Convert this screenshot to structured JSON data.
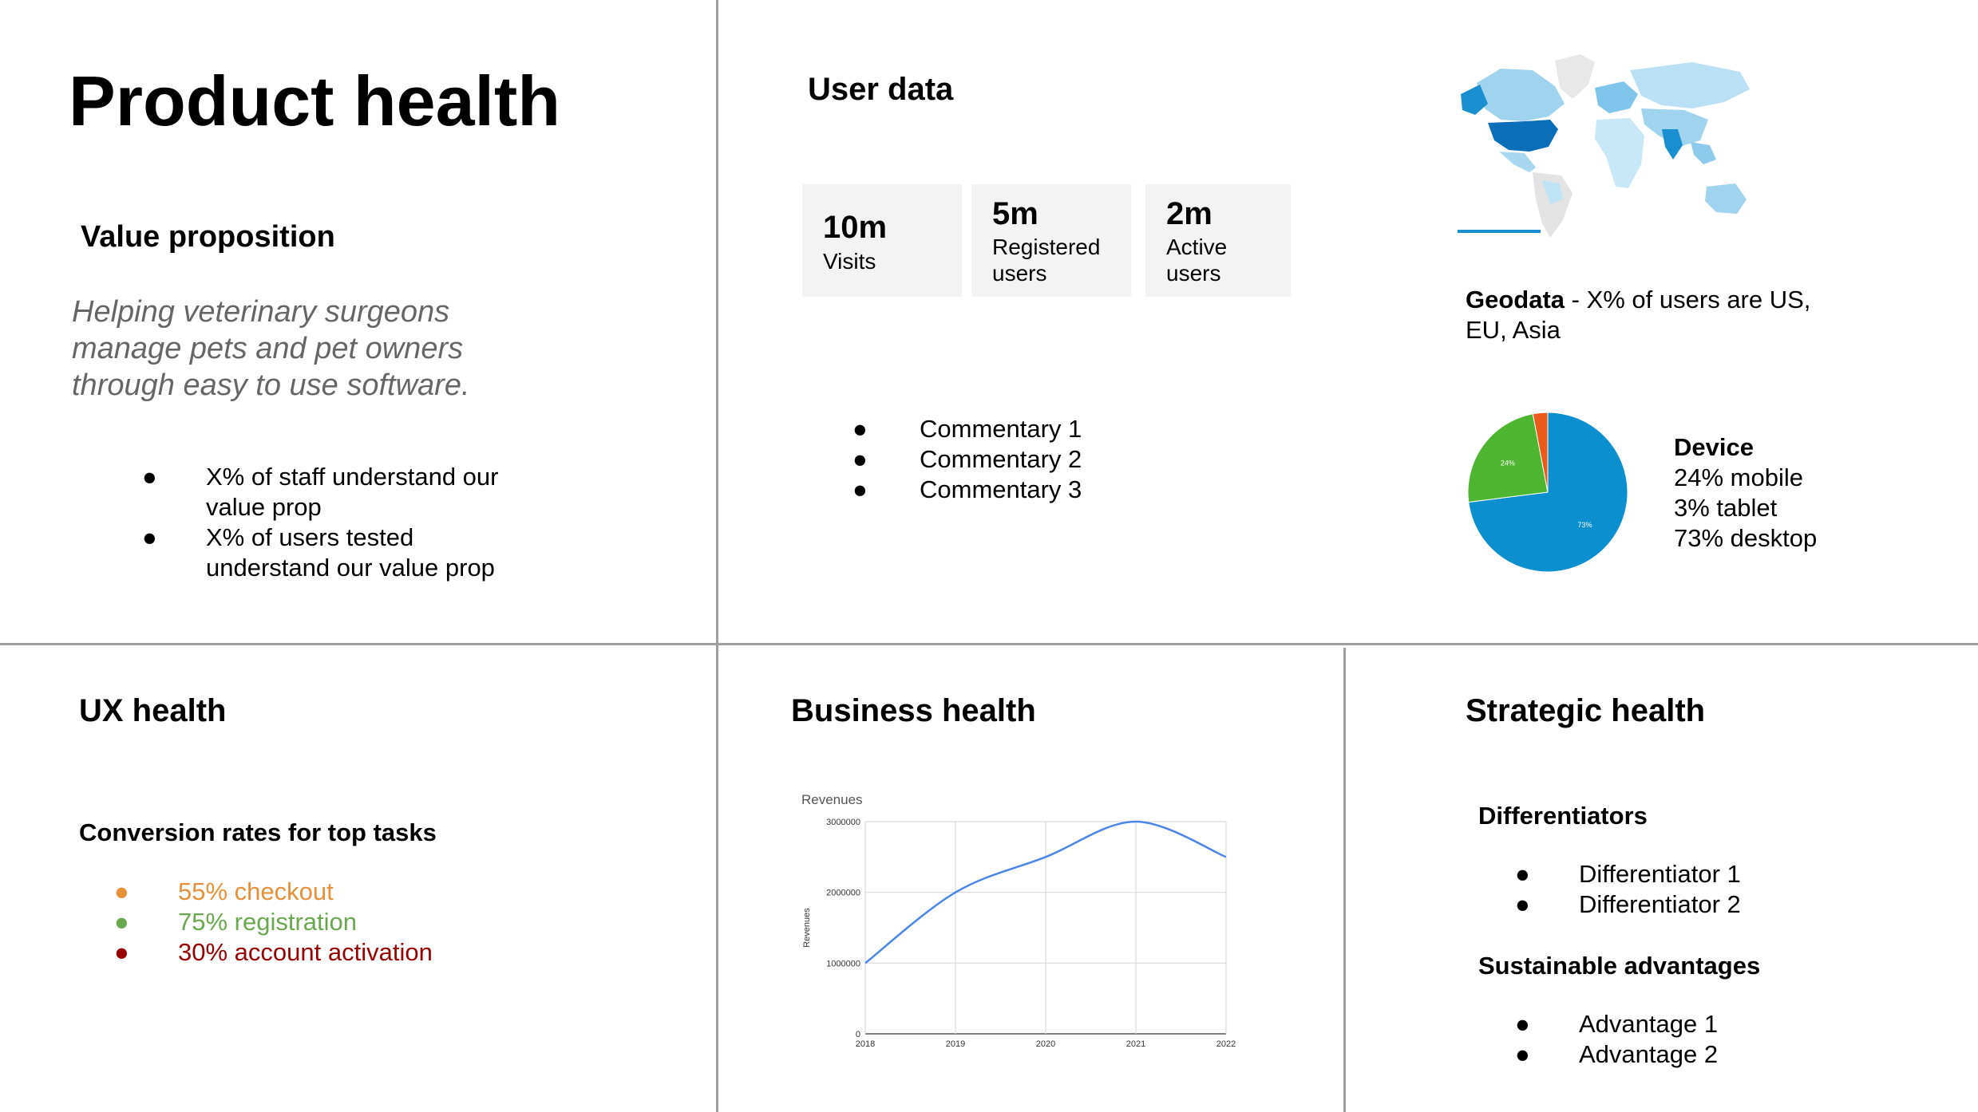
{
  "page": {
    "title": "Product health"
  },
  "value_prop": {
    "heading": "Value proposition",
    "statement_lines": [
      "Helping veterinary surgeons",
      "manage pets and pet owners",
      "through easy to use software."
    ],
    "bullets": [
      {
        "line1": "X% of staff understand our",
        "line2": "value prop"
      },
      {
        "line1": "X% of users tested",
        "line2": "understand our value prop"
      }
    ]
  },
  "user_data": {
    "heading": "User data",
    "stats": [
      {
        "value": "10m",
        "label1": "Visits",
        "label2": ""
      },
      {
        "value": "5m",
        "label1": "Registered",
        "label2": "users"
      },
      {
        "value": "2m",
        "label1": "Active",
        "label2": "users"
      }
    ],
    "commentary": [
      "Commentary 1",
      "Commentary 2",
      "Commentary 3"
    ],
    "geodata": {
      "label": "Geodata",
      "text_line1": " - X% of users are US,",
      "text_line2": "EU, Asia"
    },
    "device": {
      "heading": "Device",
      "lines": [
        "24% mobile",
        "3% tablet",
        "73% desktop"
      ]
    }
  },
  "ux_health": {
    "heading": "UX health",
    "subheading": "Conversion rates for top tasks",
    "items": [
      {
        "text": "55% checkout",
        "color": "#e69138"
      },
      {
        "text": "75% registration",
        "color": "#6aa84f"
      },
      {
        "text": "30% account activation",
        "color": "#990000"
      }
    ]
  },
  "business_health": {
    "heading": "Business health"
  },
  "strategic_health": {
    "heading": "Strategic health",
    "differentiators_heading": "Differentiators",
    "differentiators": [
      "Differentiator 1",
      "Differentiator 2"
    ],
    "advantages_heading": "Sustainable advantages",
    "advantages": [
      "Advantage 1",
      "Advantage 2"
    ]
  },
  "bullet_char": "●",
  "chart_data": [
    {
      "type": "pie",
      "categories": [
        "desktop",
        "mobile",
        "tablet"
      ],
      "values": [
        73,
        24,
        3
      ],
      "slice_labels": [
        "73%",
        "24%",
        ""
      ],
      "colors": [
        "#0b8fcf",
        "#4db52f",
        "#ea5a1a"
      ]
    },
    {
      "type": "line",
      "title": "Revenues",
      "ylabel": "Revenues",
      "x": [
        "2018",
        "2019",
        "2020",
        "2021",
        "2022"
      ],
      "series": [
        {
          "values": [
            1000000,
            2000000,
            2500000,
            3000000,
            2500000
          ],
          "color": "#4a86e8"
        }
      ],
      "ylim": [
        0,
        3000000
      ],
      "yticks": [
        "0",
        "1000000",
        "2000000",
        "3000000"
      ],
      "grid": true
    }
  ]
}
